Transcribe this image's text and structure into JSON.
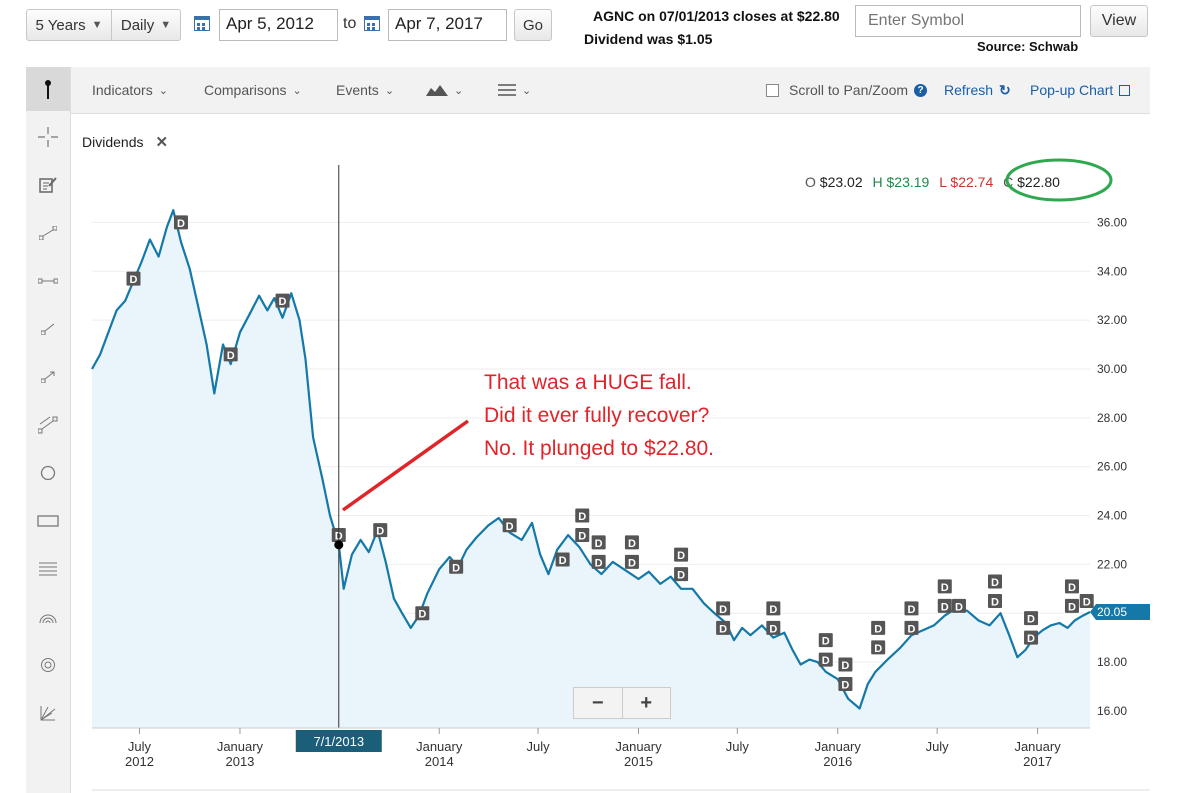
{
  "controls": {
    "range_label": "5 Years",
    "interval_label": "Daily",
    "start_date": "Apr 5, 2012",
    "to_label": "to",
    "end_date": "Apr 7, 2017",
    "go_label": "Go",
    "symbol_placeholder": "Enter Symbol",
    "view_label": "View"
  },
  "notes": {
    "line1": "AGNC on 07/01/2013 closes at $22.80",
    "line2": "Dividend was $1.05",
    "source": "Source: Schwab"
  },
  "toolbar": {
    "indicators": "Indicators",
    "comparisons": "Comparisons",
    "events": "Events",
    "scroll_label": "Scroll to Pan/Zoom",
    "refresh": "Refresh",
    "popup": "Pop-up Chart"
  },
  "chip": {
    "label": "Dividends"
  },
  "ohlc": {
    "o_label": "O",
    "o_value": "$23.02",
    "h_label": "H",
    "h_value": "$23.19",
    "l_label": "L",
    "l_value": "$22.74",
    "c_label": "C",
    "c_value": "$22.80"
  },
  "annotation": {
    "line1": "That was a HUGE fall.",
    "line2": "Did it ever fully recover?",
    "line3": "No. It plunged to $22.80."
  },
  "zoom": {
    "minus": "−",
    "plus": "+"
  },
  "colors": {
    "line": "#1478a8",
    "area": "#e9f4fb",
    "annotation": "#e0252a",
    "circle": "#2fa84f",
    "high": "#1f8a4c",
    "low": "#d0312d",
    "last_price_bg": "#1478a8",
    "crosshair_label_bg": "#1b5e7a"
  },
  "chart_data": {
    "type": "area",
    "y_ticks": [
      "16.00",
      "18.00",
      "20.00",
      "22.00",
      "24.00",
      "26.00",
      "28.00",
      "30.00",
      "32.00",
      "34.00",
      "36.00"
    ],
    "ylim": [
      15.3,
      37
    ],
    "x_ticks": [
      {
        "label": "July",
        "year": "2012",
        "date": "2012-07-01"
      },
      {
        "label": "January",
        "year": "2013",
        "date": "2013-01-01"
      },
      {
        "label": "January",
        "year": "2014",
        "date": "2014-01-01"
      },
      {
        "label": "July",
        "year": "",
        "date": "2014-07-01"
      },
      {
        "label": "January",
        "year": "2015",
        "date": "2015-01-01"
      },
      {
        "label": "July",
        "year": "",
        "date": "2015-07-01"
      },
      {
        "label": "January",
        "year": "2016",
        "date": "2016-01-01"
      },
      {
        "label": "July",
        "year": "",
        "date": "2016-07-01"
      },
      {
        "label": "January",
        "year": "2017",
        "date": "2017-01-01"
      }
    ],
    "x_range": [
      "2012-04-05",
      "2017-04-07"
    ],
    "crosshair": {
      "label": "7/1/2013",
      "date": "2013-07-01",
      "value": 22.8
    },
    "last_price": {
      "label": "20.05",
      "value": 20.05
    },
    "dividend_marker": "D",
    "series": [
      {
        "points": [
          [
            "2012-04-05",
            30.0
          ],
          [
            "2012-04-20",
            30.6
          ],
          [
            "2012-05-05",
            31.5
          ],
          [
            "2012-05-20",
            32.4
          ],
          [
            "2012-06-05",
            32.8
          ],
          [
            "2012-06-20",
            33.6
          ],
          [
            "2012-07-05",
            34.4
          ],
          [
            "2012-07-20",
            35.3
          ],
          [
            "2012-08-05",
            34.6
          ],
          [
            "2012-08-20",
            35.8
          ],
          [
            "2012-09-01",
            36.5
          ],
          [
            "2012-09-15",
            35.2
          ],
          [
            "2012-10-01",
            34.1
          ],
          [
            "2012-10-15",
            32.7
          ],
          [
            "2012-11-01",
            31.0
          ],
          [
            "2012-11-15",
            29.0
          ],
          [
            "2012-12-01",
            31.0
          ],
          [
            "2012-12-15",
            30.2
          ],
          [
            "2013-01-01",
            31.5
          ],
          [
            "2013-01-20",
            32.3
          ],
          [
            "2013-02-05",
            33.0
          ],
          [
            "2013-02-20",
            32.4
          ],
          [
            "2013-03-05",
            32.9
          ],
          [
            "2013-03-20",
            32.1
          ],
          [
            "2013-04-05",
            33.1
          ],
          [
            "2013-04-20",
            32.0
          ],
          [
            "2013-05-01",
            30.4
          ],
          [
            "2013-05-15",
            27.2
          ],
          [
            "2013-06-01",
            25.5
          ],
          [
            "2013-06-15",
            24.0
          ],
          [
            "2013-07-01",
            22.8
          ],
          [
            "2013-07-10",
            21.0
          ],
          [
            "2013-07-25",
            22.4
          ],
          [
            "2013-08-10",
            23.0
          ],
          [
            "2013-08-25",
            22.5
          ],
          [
            "2013-09-10",
            23.4
          ],
          [
            "2013-09-25",
            22.1
          ],
          [
            "2013-10-10",
            20.6
          ],
          [
            "2013-10-25",
            20.0
          ],
          [
            "2013-11-10",
            19.4
          ],
          [
            "2013-11-25",
            19.9
          ],
          [
            "2013-12-10",
            20.8
          ],
          [
            "2014-01-01",
            21.8
          ],
          [
            "2014-01-20",
            22.3
          ],
          [
            "2014-02-05",
            21.9
          ],
          [
            "2014-02-20",
            22.6
          ],
          [
            "2014-03-10",
            23.1
          ],
          [
            "2014-04-01",
            23.6
          ],
          [
            "2014-04-20",
            23.9
          ],
          [
            "2014-05-10",
            23.3
          ],
          [
            "2014-06-01",
            23.0
          ],
          [
            "2014-06-20",
            23.7
          ],
          [
            "2014-07-05",
            22.4
          ],
          [
            "2014-07-20",
            21.6
          ],
          [
            "2014-08-05",
            22.6
          ],
          [
            "2014-08-25",
            23.2
          ],
          [
            "2014-09-15",
            22.7
          ],
          [
            "2014-10-05",
            22.0
          ],
          [
            "2014-10-25",
            21.6
          ],
          [
            "2014-11-15",
            22.1
          ],
          [
            "2014-12-05",
            21.8
          ],
          [
            "2015-01-01",
            21.4
          ],
          [
            "2015-01-20",
            21.7
          ],
          [
            "2015-02-10",
            21.2
          ],
          [
            "2015-03-01",
            21.5
          ],
          [
            "2015-03-20",
            21.0
          ],
          [
            "2015-04-10",
            21.0
          ],
          [
            "2015-05-01",
            20.4
          ],
          [
            "2015-05-20",
            20.0
          ],
          [
            "2015-06-10",
            19.6
          ],
          [
            "2015-06-25",
            18.9
          ],
          [
            "2015-07-10",
            19.4
          ],
          [
            "2015-07-25",
            19.1
          ],
          [
            "2015-08-15",
            19.5
          ],
          [
            "2015-09-05",
            19.0
          ],
          [
            "2015-09-25",
            19.2
          ],
          [
            "2015-10-10",
            18.5
          ],
          [
            "2015-10-25",
            17.9
          ],
          [
            "2015-11-10",
            18.1
          ],
          [
            "2015-11-25",
            18.0
          ],
          [
            "2015-12-10",
            17.6
          ],
          [
            "2016-01-01",
            17.3
          ],
          [
            "2016-01-20",
            16.5
          ],
          [
            "2016-02-10",
            16.1
          ],
          [
            "2016-02-25",
            17.1
          ],
          [
            "2016-03-10",
            17.6
          ],
          [
            "2016-04-01",
            18.1
          ],
          [
            "2016-04-25",
            18.6
          ],
          [
            "2016-05-15",
            19.1
          ],
          [
            "2016-06-05",
            19.3
          ],
          [
            "2016-06-25",
            19.5
          ],
          [
            "2016-07-15",
            19.9
          ],
          [
            "2016-08-05",
            20.2
          ],
          [
            "2016-08-25",
            20.1
          ],
          [
            "2016-09-15",
            19.7
          ],
          [
            "2016-10-05",
            19.5
          ],
          [
            "2016-10-25",
            20.0
          ],
          [
            "2016-11-10",
            19.1
          ],
          [
            "2016-11-25",
            18.2
          ],
          [
            "2016-12-10",
            18.5
          ],
          [
            "2016-12-25",
            19.0
          ],
          [
            "2017-01-10",
            19.3
          ],
          [
            "2017-01-25",
            19.5
          ],
          [
            "2017-02-10",
            19.6
          ],
          [
            "2017-02-25",
            19.4
          ],
          [
            "2017-03-10",
            19.7
          ],
          [
            "2017-03-25",
            19.9
          ],
          [
            "2017-04-07",
            20.05
          ]
        ]
      }
    ],
    "dividends": [
      {
        "date": "2012-06-20",
        "value": 33.7
      },
      {
        "date": "2012-09-15",
        "value": 36.0
      },
      {
        "date": "2012-12-15",
        "value": 30.6
      },
      {
        "date": "2013-03-20",
        "value": 32.8
      },
      {
        "date": "2013-07-01",
        "value": 23.2
      },
      {
        "date": "2013-09-15",
        "value": 23.4
      },
      {
        "date": "2013-12-01",
        "value": 20.0
      },
      {
        "date": "2014-02-01",
        "value": 21.9
      },
      {
        "date": "2014-05-10",
        "value": 23.6
      },
      {
        "date": "2014-08-15",
        "value": 22.2
      },
      {
        "date": "2014-09-20",
        "value": 23.2
      },
      {
        "date": "2014-09-20",
        "value": 24.0
      },
      {
        "date": "2014-10-20",
        "value": 22.1
      },
      {
        "date": "2014-10-20",
        "value": 22.9
      },
      {
        "date": "2014-12-20",
        "value": 22.1
      },
      {
        "date": "2014-12-20",
        "value": 22.9
      },
      {
        "date": "2015-03-20",
        "value": 21.6
      },
      {
        "date": "2015-03-20",
        "value": 22.4
      },
      {
        "date": "2015-06-05",
        "value": 19.4
      },
      {
        "date": "2015-06-05",
        "value": 20.2
      },
      {
        "date": "2015-09-05",
        "value": 19.4
      },
      {
        "date": "2015-09-05",
        "value": 20.2
      },
      {
        "date": "2015-12-10",
        "value": 18.1
      },
      {
        "date": "2015-12-10",
        "value": 18.9
      },
      {
        "date": "2016-01-15",
        "value": 17.1
      },
      {
        "date": "2016-01-15",
        "value": 17.9
      },
      {
        "date": "2016-03-15",
        "value": 18.6
      },
      {
        "date": "2016-03-15",
        "value": 19.4
      },
      {
        "date": "2016-05-15",
        "value": 19.4
      },
      {
        "date": "2016-05-15",
        "value": 20.2
      },
      {
        "date": "2016-07-15",
        "value": 20.3
      },
      {
        "date": "2016-07-15",
        "value": 21.1
      },
      {
        "date": "2016-08-10",
        "value": 20.3
      },
      {
        "date": "2016-10-15",
        "value": 20.5
      },
      {
        "date": "2016-10-15",
        "value": 21.3
      },
      {
        "date": "2016-12-20",
        "value": 19.0
      },
      {
        "date": "2016-12-20",
        "value": 19.8
      },
      {
        "date": "2017-03-05",
        "value": 20.3
      },
      {
        "date": "2017-03-05",
        "value": 21.1
      },
      {
        "date": "2017-04-01",
        "value": 20.5
      }
    ]
  }
}
